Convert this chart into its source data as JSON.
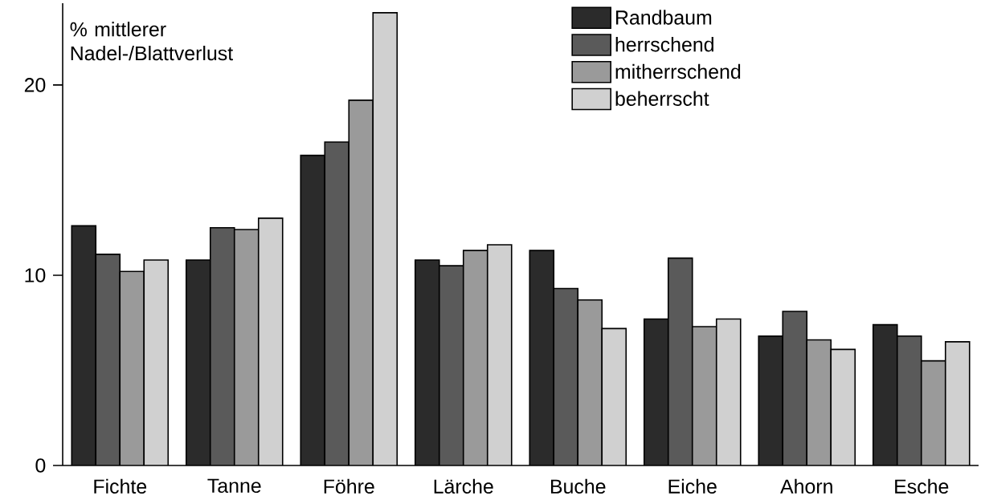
{
  "chart_data": {
    "type": "bar",
    "ylabel": "% mittlerer Nadel-/Blattverlust",
    "categories": [
      "Fichte",
      "Tanne",
      "Föhre",
      "Lärche",
      "Buche",
      "Eiche",
      "Ahorn",
      "Esche"
    ],
    "series": [
      {
        "name": "Randbaum",
        "color": "#2b2b2b",
        "values": [
          12.6,
          10.8,
          16.3,
          10.8,
          11.3,
          7.7,
          6.8,
          7.4
        ]
      },
      {
        "name": "herrschend",
        "color": "#5a5a5a",
        "values": [
          11.1,
          12.5,
          17.0,
          10.5,
          9.3,
          10.9,
          8.1,
          6.8
        ]
      },
      {
        "name": "mitherrschend",
        "color": "#9a9a9a",
        "values": [
          10.2,
          12.4,
          19.2,
          11.3,
          8.7,
          7.3,
          6.6,
          5.5
        ]
      },
      {
        "name": "beherrscht",
        "color": "#d0d0d0",
        "values": [
          10.8,
          13.0,
          23.8,
          11.6,
          7.2,
          7.7,
          6.1,
          6.5
        ]
      }
    ],
    "ylim": [
      0,
      24.3
    ],
    "yticks": [
      0,
      10,
      20
    ],
    "grid": false,
    "legend": "top right"
  }
}
